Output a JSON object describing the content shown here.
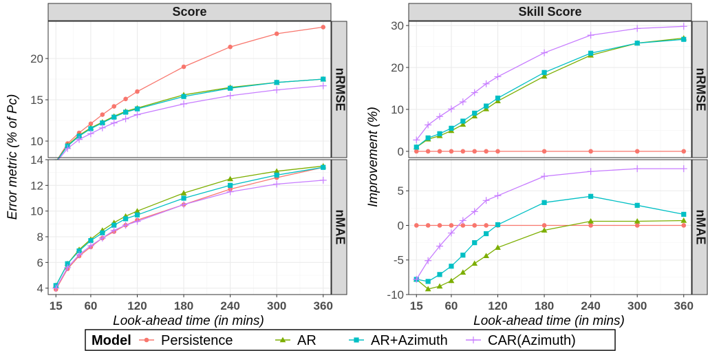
{
  "figure": {
    "y_title": "Error metric (% of Pc)",
    "y_title_right": "Improvement (%)",
    "x_title": "Look-ahead time (in mins)",
    "facet_columns": [
      "Score",
      "Skill Score"
    ],
    "facet_rows": [
      "nRMSE",
      "nMAE"
    ],
    "legend": {
      "title": "Model",
      "position": "bottom",
      "entries": [
        {
          "name": "Persistence",
          "color": "#F8766D",
          "shape": "circle"
        },
        {
          "name": "AR",
          "color": "#7CAE00",
          "shape": "triangle"
        },
        {
          "name": "AR+Azimuth",
          "color": "#00BFC4",
          "shape": "square"
        },
        {
          "name": "CAR(Azimuth)",
          "color": "#C77CFF",
          "shape": "plus"
        }
      ]
    },
    "colors": {
      "panel_bg": "#ffffff",
      "grid": "#ebebeb",
      "strip_bg": "#d9d9d9",
      "border": "#333333"
    }
  },
  "chart_data": [
    {
      "type": "line",
      "panel": "Score / nRMSE",
      "xticks": [
        15,
        60,
        120,
        180,
        240,
        300,
        360
      ],
      "ylim": [
        8,
        24.5
      ],
      "yticks": [
        10,
        15,
        20
      ],
      "x": [
        15,
        30,
        45,
        60,
        75,
        90,
        105,
        120,
        180,
        240,
        300,
        360
      ],
      "series": [
        {
          "name": "Persistence",
          "values": [
            7.5,
            9.7,
            11.0,
            12.1,
            13.2,
            14.2,
            15.1,
            16.0,
            19.0,
            21.4,
            23.0,
            23.8
          ]
        },
        {
          "name": "AR",
          "values": [
            7.5,
            9.5,
            10.7,
            11.6,
            12.3,
            13.0,
            13.6,
            14.0,
            15.6,
            16.5,
            17.1,
            17.5
          ]
        },
        {
          "name": "AR+Azimuth",
          "values": [
            7.5,
            9.4,
            10.6,
            11.5,
            12.2,
            12.9,
            13.5,
            13.9,
            15.4,
            16.4,
            17.1,
            17.5
          ]
        },
        {
          "name": "CAR(Azimuth)",
          "values": [
            7.4,
            9.1,
            10.2,
            10.9,
            11.6,
            12.2,
            12.7,
            13.2,
            14.5,
            15.5,
            16.2,
            16.7
          ]
        }
      ]
    },
    {
      "type": "line",
      "panel": "Score / nMAE",
      "xticks": [
        15,
        60,
        120,
        180,
        240,
        300,
        360
      ],
      "ylim": [
        3.5,
        14
      ],
      "yticks": [
        4,
        6,
        8,
        10,
        12,
        14
      ],
      "x": [
        15,
        30,
        45,
        60,
        75,
        90,
        105,
        120,
        180,
        240,
        300,
        360
      ],
      "series": [
        {
          "name": "Persistence",
          "values": [
            3.9,
            5.5,
            6.5,
            7.2,
            7.9,
            8.4,
            8.9,
            9.3,
            10.5,
            11.7,
            12.6,
            13.4
          ]
        },
        {
          "name": "AR",
          "values": [
            4.2,
            5.9,
            7.0,
            7.8,
            8.5,
            9.1,
            9.6,
            10.0,
            11.4,
            12.5,
            13.1,
            13.5
          ]
        },
        {
          "name": "AR+Azimuth",
          "values": [
            4.2,
            5.9,
            6.9,
            7.7,
            8.3,
            8.9,
            9.4,
            9.7,
            11.0,
            12.0,
            12.8,
            13.4
          ]
        },
        {
          "name": "CAR(Azimuth)",
          "values": [
            4.0,
            5.6,
            6.6,
            7.3,
            7.9,
            8.5,
            8.9,
            9.2,
            10.5,
            11.5,
            12.1,
            12.4
          ]
        }
      ]
    },
    {
      "type": "line",
      "panel": "Skill Score / nRMSE",
      "xticks": [
        15,
        60,
        120,
        180,
        240,
        300,
        360
      ],
      "ylim": [
        -1.5,
        31
      ],
      "yticks": [
        0,
        10,
        20,
        30
      ],
      "x": [
        15,
        30,
        45,
        60,
        75,
        90,
        105,
        120,
        180,
        240,
        300,
        360
      ],
      "series": [
        {
          "name": "Persistence",
          "values": [
            0,
            0,
            0,
            0,
            0,
            0,
            0,
            0,
            0,
            0,
            0,
            0
          ]
        },
        {
          "name": "AR",
          "values": [
            1.0,
            2.9,
            3.7,
            4.9,
            6.4,
            8.4,
            10.1,
            12.0,
            17.9,
            22.9,
            25.8,
            27.0
          ]
        },
        {
          "name": "AR+Azimuth",
          "values": [
            1.0,
            3.2,
            4.2,
            5.5,
            7.2,
            9.1,
            10.8,
            12.7,
            18.8,
            23.4,
            25.8,
            26.7
          ]
        },
        {
          "name": "CAR(Azimuth)",
          "values": [
            2.7,
            6.3,
            8.3,
            10.1,
            11.8,
            14.0,
            16.1,
            17.8,
            23.5,
            27.7,
            29.3,
            29.8
          ]
        }
      ]
    },
    {
      "type": "line",
      "panel": "Skill Score / nMAE",
      "xticks": [
        15,
        60,
        120,
        180,
        240,
        300,
        360
      ],
      "ylim": [
        -10,
        9.5
      ],
      "yticks": [
        -10,
        -5,
        0,
        5
      ],
      "x": [
        15,
        30,
        45,
        60,
        75,
        90,
        105,
        120,
        180,
        240,
        300,
        360
      ],
      "series": [
        {
          "name": "Persistence",
          "values": [
            0,
            0,
            0,
            0,
            0,
            0,
            0,
            0,
            0,
            0,
            0,
            0
          ]
        },
        {
          "name": "AR",
          "values": [
            -7.8,
            -9.2,
            -8.8,
            -8.0,
            -6.8,
            -5.5,
            -4.4,
            -3.2,
            -0.7,
            0.6,
            0.6,
            0.7
          ]
        },
        {
          "name": "AR+Azimuth",
          "values": [
            -7.8,
            -8.1,
            -7.1,
            -5.9,
            -4.3,
            -2.5,
            -1.2,
            0.1,
            3.3,
            4.2,
            2.9,
            1.6
          ]
        },
        {
          "name": "CAR(Azimuth)",
          "values": [
            -7.8,
            -5.1,
            -3.0,
            -1.1,
            0.7,
            2.0,
            3.6,
            4.3,
            7.1,
            7.8,
            8.2,
            8.2
          ]
        }
      ]
    }
  ]
}
